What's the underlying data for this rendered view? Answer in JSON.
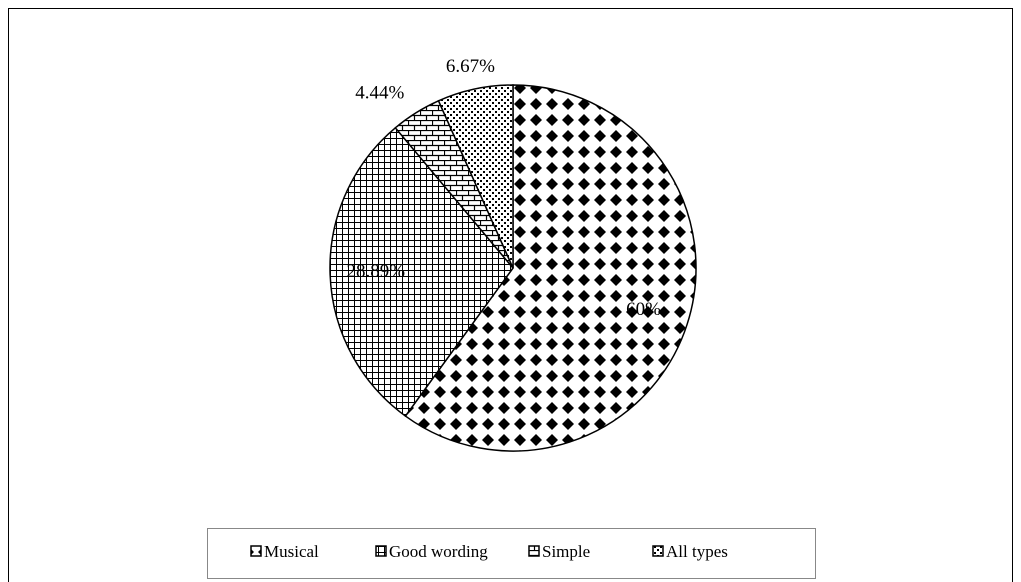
{
  "chart_data": {
    "type": "pie",
    "categories": [
      "Musical",
      "Good wording",
      "Simple",
      "All types"
    ],
    "values": [
      60,
      28.89,
      4.44,
      6.67
    ],
    "value_labels": [
      "60%",
      "28.89%",
      "4.44%",
      "6.67%"
    ],
    "legend": "bottom"
  }
}
